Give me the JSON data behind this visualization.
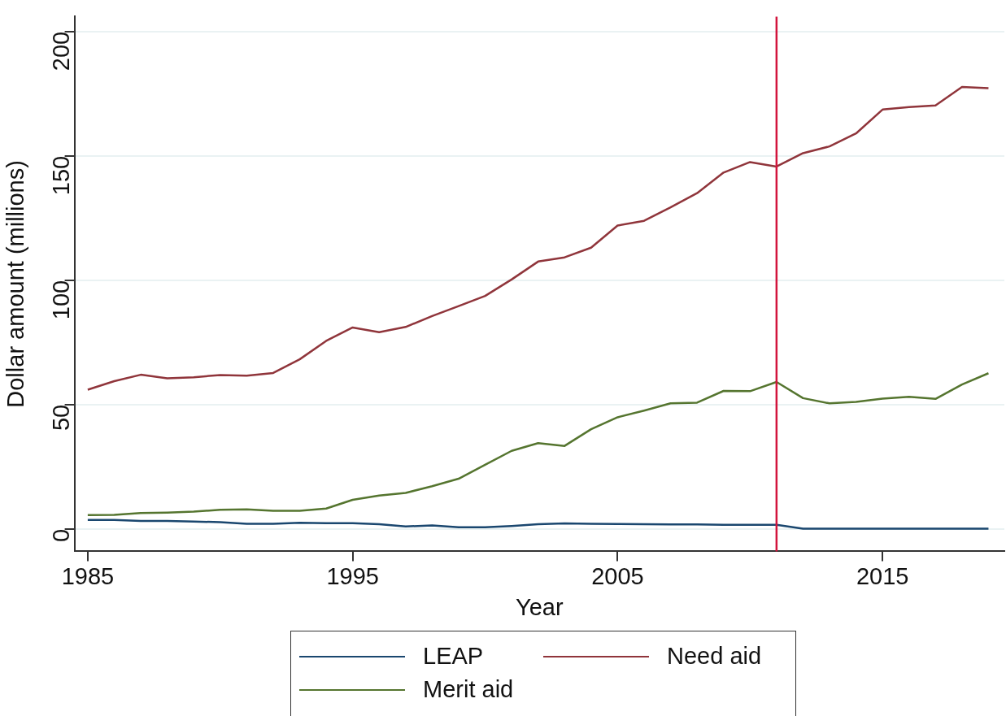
{
  "chart_data": {
    "type": "line",
    "xlabel": "Year",
    "ylabel": "Dollar amount (millions)",
    "x": [
      1985,
      1986,
      1987,
      1988,
      1989,
      1990,
      1991,
      1992,
      1993,
      1994,
      1995,
      1996,
      1997,
      1998,
      1999,
      2000,
      2001,
      2002,
      2003,
      2004,
      2005,
      2006,
      2007,
      2008,
      2009,
      2010,
      2011,
      2012,
      2013,
      2014,
      2015,
      2016,
      2017,
      2018,
      2019
    ],
    "series": [
      {
        "name": "LEAP",
        "color": "#1a476f",
        "values": [
          3.6,
          3.6,
          3.2,
          3.2,
          3.0,
          2.7,
          2.1,
          2.1,
          2.5,
          2.3,
          2.3,
          1.9,
          1.0,
          1.4,
          0.7,
          0.7,
          1.2,
          1.9,
          2.2,
          2.1,
          2.0,
          1.9,
          1.8,
          1.8,
          1.7,
          1.7,
          1.7,
          0.1,
          0.1,
          0.1,
          0.1,
          0.1,
          0.1,
          0.1,
          0.1
        ]
      },
      {
        "name": "Need aid",
        "color": "#90353b",
        "values": [
          56,
          59.4,
          62,
          60.6,
          61,
          61.9,
          61.6,
          62.7,
          68.2,
          75.6,
          81,
          79.1,
          81.2,
          85.6,
          89.6,
          93.7,
          100.3,
          107.5,
          109.2,
          113.1,
          122,
          123.9,
          129.3,
          135,
          143.3,
          147.5,
          145.7,
          151.1,
          153.8,
          159,
          168.6,
          169.6,
          170.3,
          177.7,
          177.2
        ]
      },
      {
        "name": "Merit aid",
        "color": "#55752f",
        "values": [
          5.6,
          5.7,
          6.4,
          6.6,
          7,
          7.7,
          7.9,
          7.3,
          7.3,
          8.2,
          11.7,
          13.4,
          14.5,
          17.2,
          20.2,
          25.8,
          31.4,
          34.5,
          33.4,
          40.1,
          44.9,
          47.6,
          50.5,
          50.8,
          55.5,
          55.4,
          59.1,
          52.6,
          50.5,
          51.1,
          52.4,
          53.1,
          52.3,
          58.1,
          62.6
        ]
      }
    ],
    "xlim": [
      1984.5,
      2019.6
    ],
    "xticks": [
      1985,
      1995,
      2005,
      2015
    ],
    "ylim": [
      -9,
      206
    ],
    "yticks": [
      0,
      50,
      100,
      150,
      200
    ],
    "ref_lines": [
      {
        "axis": "x",
        "value": 2011,
        "color": "#d2143c"
      }
    ],
    "grid": "y",
    "legend": "bottom",
    "marker": "none",
    "line_style": "solid"
  }
}
